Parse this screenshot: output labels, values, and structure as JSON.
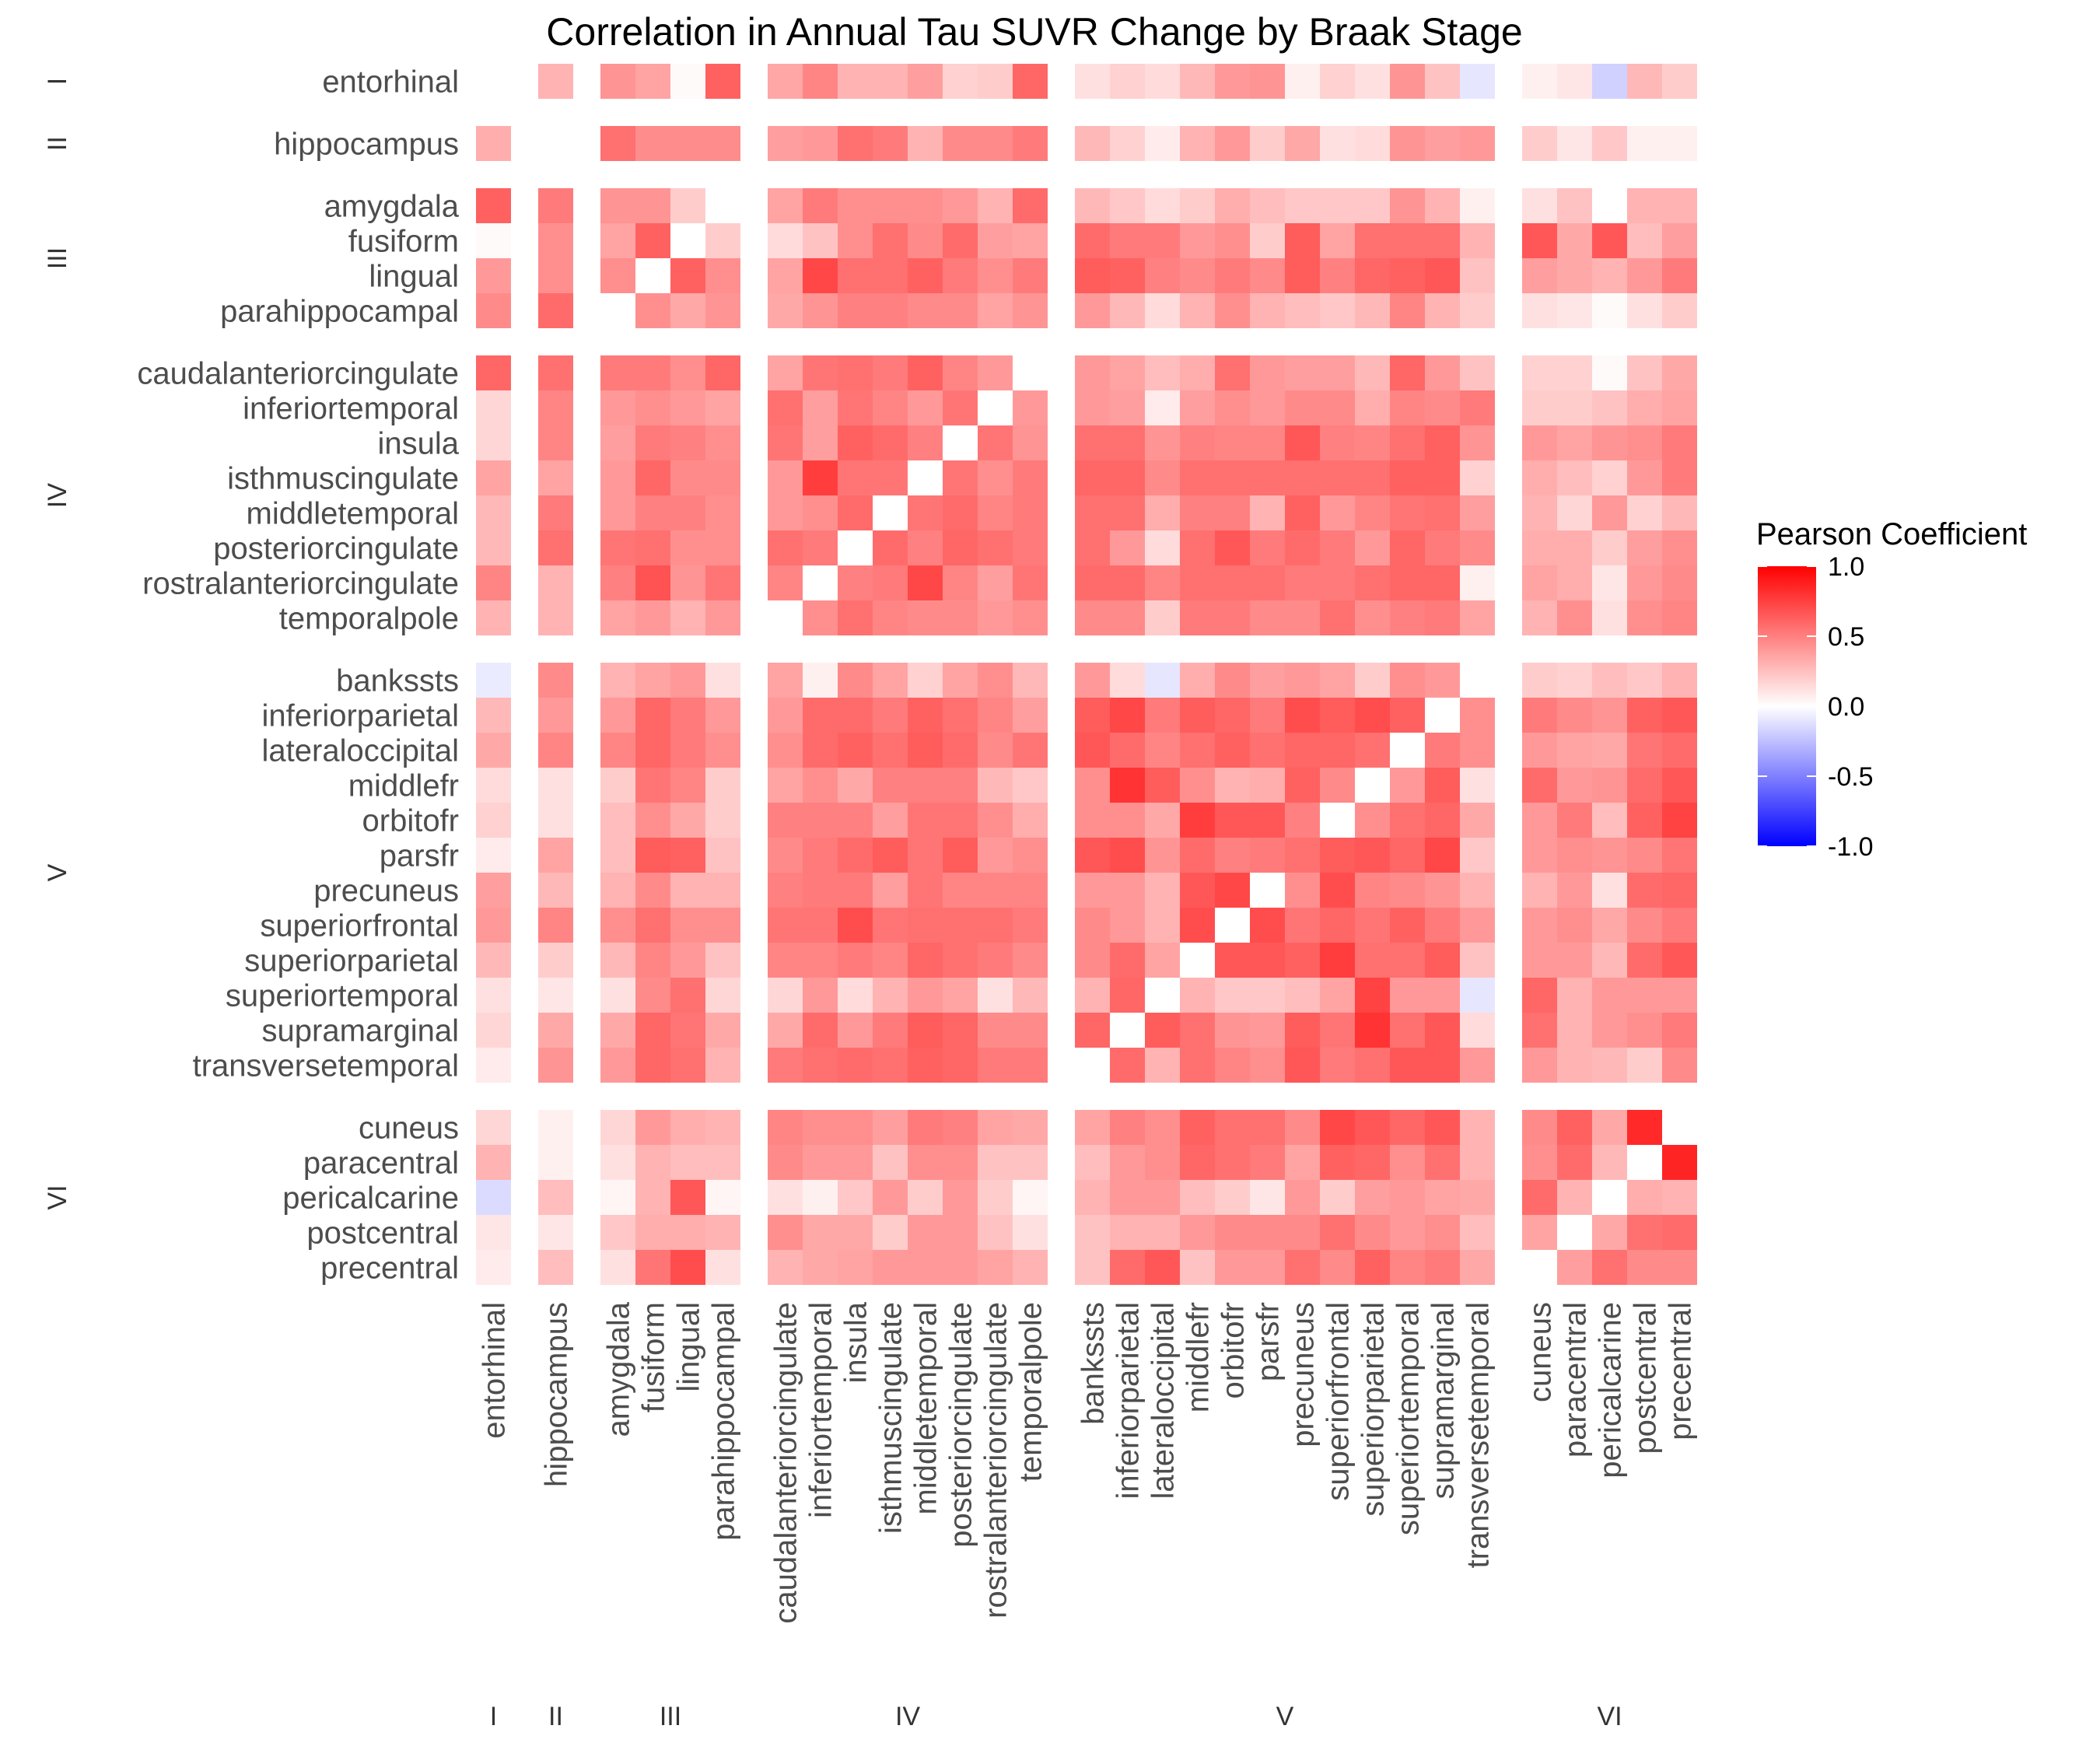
{
  "chart_data": {
    "type": "heatmap",
    "title": "Correlation in Annual Tau SUVR Change by Braak Stage",
    "groups": [
      {
        "stage": "I",
        "regions": [
          "entorhinal"
        ]
      },
      {
        "stage": "II",
        "regions": [
          "hippocampus"
        ]
      },
      {
        "stage": "III",
        "regions": [
          "amygdala",
          "fusiform",
          "lingual",
          "parahippocampal"
        ]
      },
      {
        "stage": "IV",
        "regions": [
          "caudalanteriorcingulate",
          "inferiortemporal",
          "insula",
          "isthmuscingulate",
          "middletemporal",
          "posteriorcingulate",
          "rostralanteriorcingulate",
          "temporalpole"
        ]
      },
      {
        "stage": "V",
        "regions": [
          "bankssts",
          "inferiorparietal",
          "lateraloccipital",
          "middlefr",
          "orbitofr",
          "parsfr",
          "precuneus",
          "superiorfrontal",
          "superiorparietal",
          "superiortemporal",
          "supramarginal",
          "transversetemporal"
        ]
      },
      {
        "stage": "VI",
        "regions": [
          "cuneus",
          "paracentral",
          "pericalcarine",
          "postcentral",
          "precentral"
        ]
      }
    ],
    "column_stage_labels": [
      "I",
      "II",
      "III",
      "IV",
      "V",
      "VI"
    ],
    "row_stage_labels": [
      "I",
      "II",
      "III",
      "IV",
      "V",
      "VI"
    ],
    "legend": {
      "title": "Pearson Coefficient",
      "ticks": [
        "1.0",
        "0.5",
        "0.0",
        "-0.5",
        "-1.0"
      ],
      "range": [
        -1,
        1
      ],
      "colors": {
        "low": "#0000ff",
        "mid": "#ffffff",
        "high": "#ff0000"
      }
    },
    "values": [
      [
        0,
        0.3,
        0.42,
        0.36,
        0.02,
        0.62,
        0.35,
        0.48,
        0.3,
        0.3,
        0.38,
        0.18,
        0.2,
        0.6,
        0.12,
        0.18,
        0.14,
        0.28,
        0.4,
        0.42,
        0.06,
        0.18,
        0.12,
        0.42,
        0.24,
        -0.1,
        0.06,
        0.1,
        -0.18,
        0.28,
        0.2
      ],
      [
        0.32,
        0,
        0.56,
        0.45,
        0.45,
        0.45,
        0.38,
        0.4,
        0.56,
        0.52,
        0.3,
        0.46,
        0.46,
        0.52,
        0.28,
        0.18,
        0.08,
        0.3,
        0.4,
        0.2,
        0.34,
        0.12,
        0.14,
        0.42,
        0.38,
        0.4,
        0.2,
        0.1,
        0.22,
        0.06,
        0.06
      ],
      [
        0.62,
        0.52,
        0.42,
        0.42,
        0.2,
        0,
        0.36,
        0.52,
        0.44,
        0.44,
        0.44,
        0.4,
        0.3,
        0.58,
        0.28,
        0.22,
        0.14,
        0.2,
        0.32,
        0.26,
        0.22,
        0.22,
        0.22,
        0.42,
        0.3,
        0.06,
        0.12,
        0.24,
        0,
        0.3,
        0.3
      ],
      [
        0.02,
        0.44,
        0.36,
        0.62,
        0,
        0.2,
        0.14,
        0.24,
        0.44,
        0.56,
        0.46,
        0.58,
        0.38,
        0.36,
        0.58,
        0.52,
        0.52,
        0.4,
        0.44,
        0.2,
        0.64,
        0.36,
        0.56,
        0.56,
        0.56,
        0.3,
        0.66,
        0.34,
        0.66,
        0.26,
        0.38
      ],
      [
        0.4,
        0.44,
        0.44,
        0,
        0.62,
        0.44,
        0.36,
        0.72,
        0.56,
        0.56,
        0.62,
        0.52,
        0.44,
        0.52,
        0.64,
        0.62,
        0.5,
        0.46,
        0.52,
        0.46,
        0.64,
        0.5,
        0.6,
        0.62,
        0.66,
        0.24,
        0.38,
        0.34,
        0.3,
        0.4,
        0.52
      ],
      [
        0.46,
        0.58,
        0,
        0.44,
        0.34,
        0.42,
        0.34,
        0.42,
        0.5,
        0.5,
        0.46,
        0.46,
        0.36,
        0.42,
        0.4,
        0.28,
        0.14,
        0.3,
        0.44,
        0.3,
        0.26,
        0.22,
        0.28,
        0.48,
        0.3,
        0.2,
        0.12,
        0.1,
        0.02,
        0.12,
        0.2
      ],
      [
        0.6,
        0.56,
        0.52,
        0.52,
        0.44,
        0.6,
        0.36,
        0.54,
        0.56,
        0.52,
        0.62,
        0.48,
        0.4,
        0,
        0.4,
        0.36,
        0.26,
        0.32,
        0.56,
        0.4,
        0.38,
        0.38,
        0.28,
        0.6,
        0.4,
        0.24,
        0.18,
        0.18,
        0.02,
        0.24,
        0.34
      ],
      [
        0.16,
        0.48,
        0.4,
        0.44,
        0.4,
        0.36,
        0.56,
        0.38,
        0.54,
        0.48,
        0.4,
        0.54,
        0,
        0.4,
        0.4,
        0.38,
        0.08,
        0.38,
        0.44,
        0.4,
        0.46,
        0.46,
        0.32,
        0.48,
        0.46,
        0.52,
        0.2,
        0.2,
        0.24,
        0.32,
        0.36
      ],
      [
        0.16,
        0.48,
        0.38,
        0.52,
        0.5,
        0.44,
        0.54,
        0.38,
        0.62,
        0.58,
        0.5,
        0,
        0.54,
        0.42,
        0.56,
        0.56,
        0.42,
        0.5,
        0.48,
        0.48,
        0.66,
        0.5,
        0.48,
        0.56,
        0.62,
        0.42,
        0.4,
        0.36,
        0.42,
        0.44,
        0.52
      ],
      [
        0.36,
        0.36,
        0.4,
        0.6,
        0.46,
        0.46,
        0.4,
        0.76,
        0.54,
        0.54,
        0,
        0.54,
        0.44,
        0.52,
        0.6,
        0.6,
        0.46,
        0.56,
        0.56,
        0.56,
        0.56,
        0.56,
        0.56,
        0.62,
        0.62,
        0.18,
        0.32,
        0.26,
        0.18,
        0.4,
        0.52
      ],
      [
        0.28,
        0.52,
        0.4,
        0.5,
        0.5,
        0.44,
        0.4,
        0.44,
        0.58,
        0,
        0.54,
        0.58,
        0.48,
        0.52,
        0.56,
        0.56,
        0.32,
        0.5,
        0.5,
        0.3,
        0.62,
        0.4,
        0.48,
        0.54,
        0.56,
        0.38,
        0.3,
        0.16,
        0.4,
        0.18,
        0.28
      ],
      [
        0.28,
        0.56,
        0.54,
        0.56,
        0.44,
        0.44,
        0.56,
        0.52,
        0,
        0.58,
        0.5,
        0.6,
        0.56,
        0.52,
        0.56,
        0.4,
        0.14,
        0.56,
        0.66,
        0.52,
        0.58,
        0.52,
        0.4,
        0.6,
        0.52,
        0.46,
        0.32,
        0.32,
        0.2,
        0.38,
        0.44
      ],
      [
        0.48,
        0.3,
        0.5,
        0.68,
        0.42,
        0.54,
        0.48,
        0,
        0.5,
        0.52,
        0.72,
        0.48,
        0.38,
        0.54,
        0.58,
        0.58,
        0.48,
        0.56,
        0.56,
        0.56,
        0.52,
        0.52,
        0.56,
        0.6,
        0.6,
        0.06,
        0.36,
        0.32,
        0.1,
        0.4,
        0.46
      ],
      [
        0.3,
        0.3,
        0.36,
        0.4,
        0.3,
        0.4,
        0,
        0.44,
        0.56,
        0.48,
        0.46,
        0.46,
        0.4,
        0.44,
        0.46,
        0.46,
        0.2,
        0.52,
        0.52,
        0.46,
        0.46,
        0.56,
        0.44,
        0.5,
        0.52,
        0.36,
        0.3,
        0.44,
        0.12,
        0.44,
        0.48
      ],
      [
        -0.08,
        0.46,
        0.3,
        0.36,
        0.4,
        0.12,
        0.36,
        0.06,
        0.46,
        0.36,
        0.18,
        0.36,
        0.44,
        0.28,
        0.4,
        0.14,
        -0.1,
        0.32,
        0.46,
        0.38,
        0.4,
        0.36,
        0.2,
        0.44,
        0.4,
        0,
        0.2,
        0.18,
        0.26,
        0.22,
        0.3
      ],
      [
        0.28,
        0.4,
        0.4,
        0.6,
        0.52,
        0.4,
        0.4,
        0.58,
        0.58,
        0.52,
        0.62,
        0.56,
        0.48,
        0.38,
        0.64,
        0.72,
        0.52,
        0.64,
        0.6,
        0.52,
        0.7,
        0.64,
        0.7,
        0.62,
        0,
        0.44,
        0.52,
        0.46,
        0.42,
        0.62,
        0.66
      ],
      [
        0.34,
        0.48,
        0.48,
        0.6,
        0.52,
        0.44,
        0.44,
        0.58,
        0.62,
        0.56,
        0.64,
        0.58,
        0.46,
        0.54,
        0.66,
        0.58,
        0.48,
        0.56,
        0.62,
        0.56,
        0.6,
        0.6,
        0.56,
        0,
        0.52,
        0.44,
        0.4,
        0.36,
        0.34,
        0.54,
        0.58
      ],
      [
        0.14,
        0.12,
        0.2,
        0.54,
        0.48,
        0.2,
        0.36,
        0.44,
        0.34,
        0.5,
        0.5,
        0.5,
        0.28,
        0.22,
        0.44,
        0.8,
        0.64,
        0.44,
        0.3,
        0.32,
        0.62,
        0.46,
        0,
        0.4,
        0.64,
        0.12,
        0.58,
        0.4,
        0.42,
        0.58,
        0.66
      ],
      [
        0.18,
        0.12,
        0.26,
        0.44,
        0.34,
        0.2,
        0.5,
        0.5,
        0.5,
        0.38,
        0.54,
        0.54,
        0.44,
        0.32,
        0.44,
        0.44,
        0.34,
        0.76,
        0.66,
        0.66,
        0.5,
        0,
        0.44,
        0.56,
        0.6,
        0.34,
        0.4,
        0.52,
        0.26,
        0.62,
        0.74
      ],
      [
        0.08,
        0.36,
        0.26,
        0.64,
        0.62,
        0.24,
        0.46,
        0.52,
        0.58,
        0.64,
        0.54,
        0.64,
        0.4,
        0.44,
        0.66,
        0.7,
        0.42,
        0.58,
        0.5,
        0.52,
        0.56,
        0.64,
        0.66,
        0.6,
        0.72,
        0.22,
        0.4,
        0.44,
        0.42,
        0.46,
        0.54
      ],
      [
        0.38,
        0.28,
        0.3,
        0.46,
        0.3,
        0.3,
        0.5,
        0.52,
        0.52,
        0.38,
        0.54,
        0.48,
        0.48,
        0.48,
        0.4,
        0.4,
        0.3,
        0.66,
        0.72,
        0,
        0.44,
        0.7,
        0.48,
        0.46,
        0.42,
        0.3,
        0.3,
        0.4,
        0.12,
        0.58,
        0.6
      ],
      [
        0.4,
        0.48,
        0.44,
        0.56,
        0.44,
        0.44,
        0.54,
        0.54,
        0.7,
        0.54,
        0.56,
        0.56,
        0.56,
        0.52,
        0.46,
        0.4,
        0.3,
        0.7,
        0,
        0.7,
        0.54,
        0.6,
        0.54,
        0.62,
        0.52,
        0.4,
        0.4,
        0.44,
        0.34,
        0.46,
        0.52
      ],
      [
        0.28,
        0.2,
        0.28,
        0.48,
        0.4,
        0.24,
        0.48,
        0.48,
        0.52,
        0.48,
        0.6,
        0.56,
        0.52,
        0.46,
        0.46,
        0.58,
        0.36,
        0,
        0.66,
        0.66,
        0.62,
        0.76,
        0.56,
        0.56,
        0.64,
        0.24,
        0.4,
        0.4,
        0.28,
        0.58,
        0.66
      ],
      [
        0.12,
        0.1,
        0.12,
        0.46,
        0.56,
        0.16,
        0.16,
        0.4,
        0.14,
        0.3,
        0.4,
        0.36,
        0.12,
        0.28,
        0.3,
        0.6,
        0,
        0.3,
        0.22,
        0.22,
        0.26,
        0.36,
        0.74,
        0.4,
        0.4,
        -0.1,
        0.6,
        0.3,
        0.4,
        0.4,
        0.4
      ],
      [
        0.16,
        0.34,
        0.34,
        0.6,
        0.54,
        0.34,
        0.34,
        0.58,
        0.4,
        0.52,
        0.64,
        0.6,
        0.46,
        0.46,
        0.6,
        0,
        0.64,
        0.56,
        0.42,
        0.4,
        0.64,
        0.54,
        0.8,
        0.56,
        0.66,
        0.14,
        0.56,
        0.3,
        0.4,
        0.44,
        0.52
      ],
      [
        0.08,
        0.42,
        0.4,
        0.6,
        0.56,
        0.3,
        0.52,
        0.56,
        0.58,
        0.56,
        0.62,
        0.6,
        0.52,
        0.52,
        0,
        0.58,
        0.3,
        0.56,
        0.48,
        0.44,
        0.66,
        0.52,
        0.56,
        0.66,
        0.66,
        0.4,
        0.4,
        0.3,
        0.28,
        0.2,
        0.46
      ],
      [
        0.16,
        0.06,
        0.16,
        0.4,
        0.32,
        0.3,
        0.48,
        0.44,
        0.44,
        0.38,
        0.52,
        0.5,
        0.36,
        0.34,
        0.36,
        0.5,
        0.44,
        0.62,
        0.56,
        0.56,
        0.46,
        0.72,
        0.66,
        0.6,
        0.66,
        0.3,
        0.46,
        0.62,
        0.34,
        0.84,
        0
      ],
      [
        0.3,
        0.06,
        0.12,
        0.3,
        0.26,
        0.26,
        0.46,
        0.4,
        0.4,
        0.24,
        0.44,
        0.44,
        0.24,
        0.24,
        0.26,
        0.4,
        0.44,
        0.6,
        0.56,
        0.52,
        0.36,
        0.62,
        0.6,
        0.44,
        0.56,
        0.3,
        0.44,
        0.58,
        0.28,
        0,
        0.86
      ],
      [
        -0.14,
        0.26,
        0.04,
        0.3,
        0.66,
        0.04,
        0.12,
        0.06,
        0.22,
        0.4,
        0.2,
        0.4,
        0.2,
        0.04,
        0.3,
        0.4,
        0.4,
        0.26,
        0.2,
        0.1,
        0.4,
        0.2,
        0.38,
        0.4,
        0.36,
        0.34,
        0.58,
        0.3,
        0,
        0.32,
        0.3
      ],
      [
        0.1,
        0.1,
        0.22,
        0.32,
        0.32,
        0.3,
        0.44,
        0.34,
        0.34,
        0.2,
        0.4,
        0.4,
        0.24,
        0.12,
        0.24,
        0.3,
        0.3,
        0.4,
        0.46,
        0.46,
        0.46,
        0.56,
        0.46,
        0.4,
        0.44,
        0.26,
        0.36,
        0,
        0.34,
        0.56,
        0.58
      ],
      [
        0.08,
        0.26,
        0.12,
        0.54,
        0.7,
        0.12,
        0.3,
        0.34,
        0.36,
        0.4,
        0.4,
        0.4,
        0.36,
        0.3,
        0.24,
        0.58,
        0.66,
        0.24,
        0.4,
        0.4,
        0.56,
        0.46,
        0.62,
        0.48,
        0.52,
        0.34,
        0,
        0.38,
        0.56,
        0.46,
        0.46
      ]
    ]
  }
}
